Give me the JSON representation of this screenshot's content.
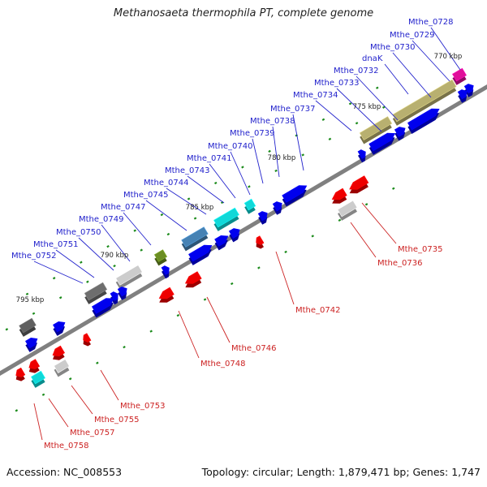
{
  "title": "Methanosaeta thermophila PT, complete genome",
  "footer": {
    "accession": "Accession: NC_008553",
    "summary": "Topology: circular; Length: 1,879,471 bp; Genes: 1,747"
  },
  "colors": {
    "backbone": "#808080",
    "forward": "#0000ee",
    "reverse": "#ee0000",
    "tick": "#1a8a1a",
    "label_forward": "#2222cc",
    "label_reverse": "#cc2222"
  },
  "scale_labels": [
    "770 kbp",
    "775 kbp",
    "780 kbp",
    "785 kbp",
    "790 kbp",
    "795 kbp"
  ],
  "genes_forward": [
    "Mthe_0728",
    "Mthe_0729",
    "Mthe_0730",
    "dnaK",
    "Mthe_0732",
    "Mthe_0733",
    "Mthe_0734",
    "Mthe_0737",
    "Mthe_0738",
    "Mthe_0739",
    "Mthe_0740",
    "Mthe_0741",
    "Mthe_0743",
    "Mthe_0744",
    "Mthe_0745",
    "Mthe_0747",
    "Mthe_0749",
    "Mthe_0750",
    "Mthe_0751",
    "Mthe_0752"
  ],
  "genes_reverse": [
    "Mthe_0735",
    "Mthe_0736",
    "Mthe_0742",
    "Mthe_0746",
    "Mthe_0748",
    "Mthe_0753",
    "Mthe_0755",
    "Mthe_0757",
    "Mthe_0758"
  ]
}
